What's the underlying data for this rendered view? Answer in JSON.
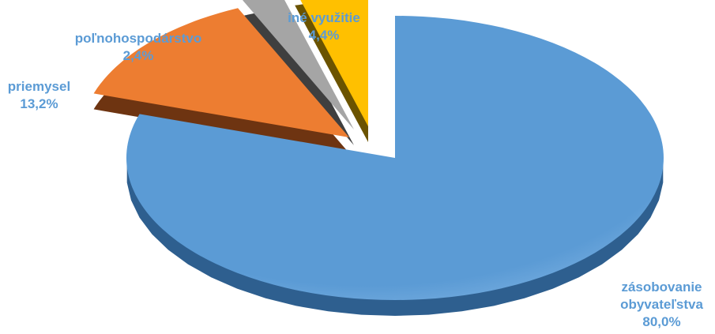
{
  "chart_data": {
    "type": "pie",
    "title": "",
    "slices": [
      {
        "name": "zásobovanie obyvateľstva",
        "name_lines": [
          "zásobovanie",
          "obyvateľstva"
        ],
        "value": 80.0,
        "label": "80,0%",
        "color": "#5b9bd5",
        "side_color": "#2e5f8f"
      },
      {
        "name": "priemysel",
        "name_lines": [
          "priemysel"
        ],
        "value": 13.2,
        "label": "13,2%",
        "color": "#ed7d31",
        "side_color": "#6e3411"
      },
      {
        "name": "poľnohospodárstvo",
        "name_lines": [
          "poľnohospodárstvo"
        ],
        "value": 2.4,
        "label": "2,4%",
        "color": "#a5a5a5",
        "side_color": "#3f3f3f"
      },
      {
        "name": "iné využitie",
        "name_lines": [
          "iné využitie"
        ],
        "value": 4.4,
        "label": "4,4%",
        "color": "#ffc000",
        "side_color": "#6b5300"
      }
    ],
    "label_color": "#5b9bd5",
    "legend": "none",
    "style": "3d-exploded"
  }
}
